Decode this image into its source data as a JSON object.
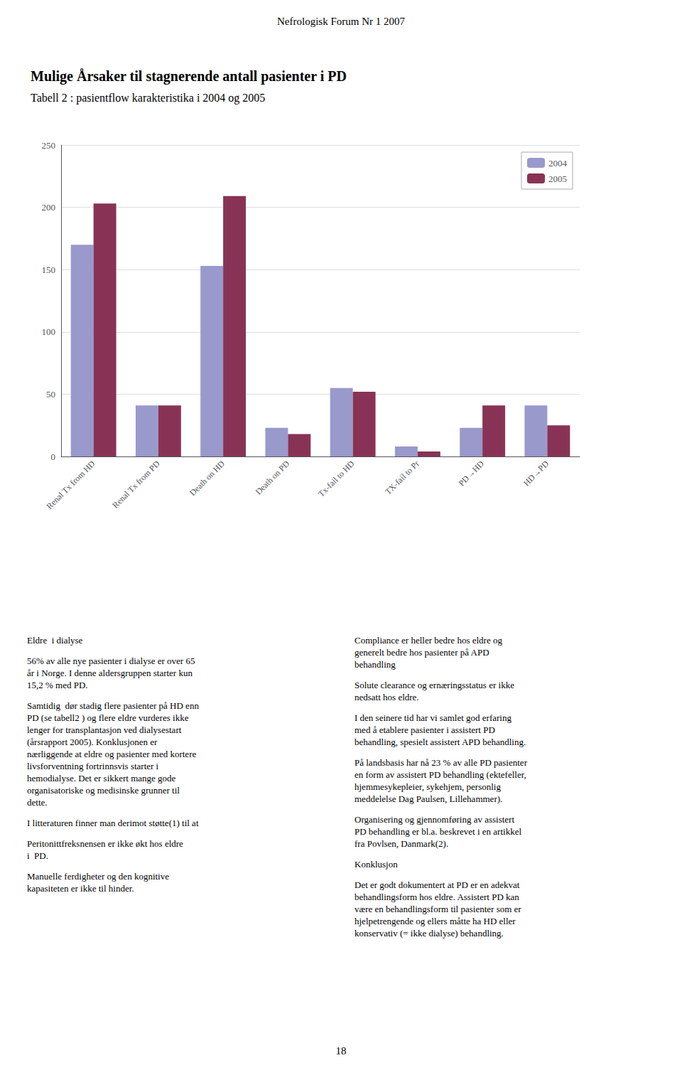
{
  "chart_data": {
    "type": "bar",
    "title": "Mulige Årsaker til stagnerende antall pasienter i PD",
    "subtitle": "Tabell 2 : pasientflow karakteristika i 2004 og 2005",
    "categories": [
      "Renal Tx from HD",
      "Renal Tx from PD",
      "Death on HD",
      "Death on PD",
      "Tx-fail to HD",
      "TX-fail to Pr",
      "PD→HD",
      "HD→PD"
    ],
    "series": [
      {
        "name": "2004",
        "color": "#9999cc",
        "values": [
          170,
          41,
          153,
          23,
          55,
          8,
          23,
          41
        ]
      },
      {
        "name": "2005",
        "color": "#883355",
        "values": [
          203,
          41,
          209,
          18,
          52,
          4,
          41,
          25
        ]
      }
    ],
    "ylim": [
      0,
      250
    ],
    "yticks": [
      0,
      50,
      100,
      150,
      200,
      250
    ],
    "grid": true,
    "legend": "upper right",
    "annotations": [
      "Nefrologisk Forum Nr 1 2007",
      "Eldre  i dialyse",
      "56% av alle nye pasienter i dialyse er over 65\når i Norge. I denne aldersgruppen starter kun\n15,2 % med PD.",
      "Samtidig  dør stadig flere pasienter på HD enn\nPD (se tabell2 ) og flere eldre vurderes ikke\nlenger for transplantasjon ved dialysestart\n(årsrapport 2005). Konklusjonen er\nnærliggende at eldre og pasienter med kortere\nlivsforventning fortrinnsvis starter i\nhemodialyse. Det er sikkert mange gode\norganisatoriske og medisinske grunner til\ndette.",
      "I litteraturen finner man derimot støtte(1) til at",
      "Peritonittfreksnensen er ikke økt hos eldre\ni  PD.",
      "Manuelle ferdigheter og den kognitive\nkapasiteten er ikke til hinder.",
      "Compliance er heller bedre hos eldre og\ngenerelt bedre hos pasienter på APD\nbehandling",
      "Solute clearance og ernæringsstatus er ikke\nnedsatt hos eldre.",
      "I den seinere tid har vi samlet god erfaring\nmed å etablere pasienter i assistert PD\nbehandling, spesielt assistert APD behandling.",
      "På landsbasis har nå 23 % av alle PD pasienter\nen form av assistert PD behandling (ektefeller,\nhjemmesykepleier, sykehjem, personlig\nmeddelelse Dag Paulsen, Lillehammer).",
      "Organisering og gjennomføring av assistert\nPD behandling er bl.a. beskrevet i en artikkel\nfra Povlsen, Danmark(2).",
      "Konklusjon",
      "Det er godt dokumentert at PD er en adekvat\nbehandlingsform hos eldre. Assistert PD kan\nvære en behandlingsform til pasienter som er\nhjelpetrengende og ellers måtte ha HD eller\nkonservativ (= ikke dialyse) behandling.",
      "18"
    ]
  }
}
